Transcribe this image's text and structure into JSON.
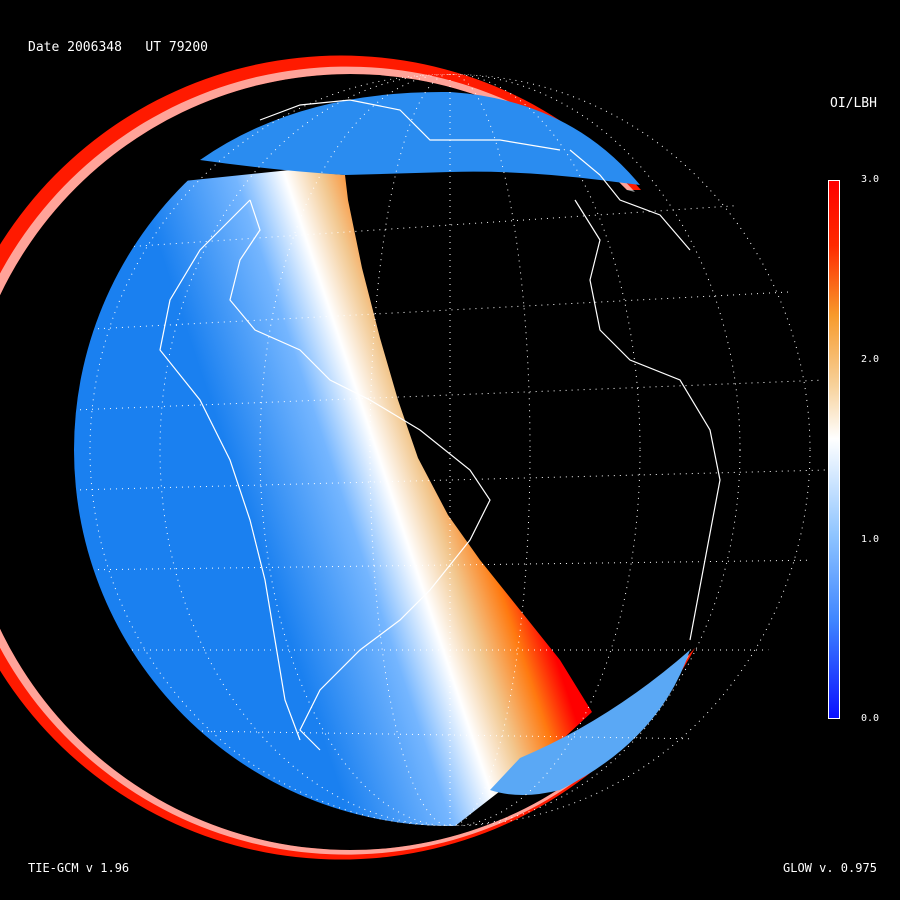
{
  "header": {
    "date_text": "Date 2006348   UT 79200"
  },
  "footer": {
    "model_text": "TIE-GCM v 1.96",
    "glow_text": "GLOW v. 0.975"
  },
  "colorbar": {
    "title": "OI/LBH",
    "ticks": [
      "3.0",
      "2.0",
      "1.0",
      "0.0"
    ],
    "range": [
      0.0,
      3.0
    ],
    "colors": {
      "low": "#0a10ff",
      "mid": "#ffffff",
      "high": "#ff0000"
    }
  },
  "map": {
    "projection": "orthographic globe",
    "background": "#000000",
    "graticule": "dotted white",
    "coastlines": "white"
  }
}
